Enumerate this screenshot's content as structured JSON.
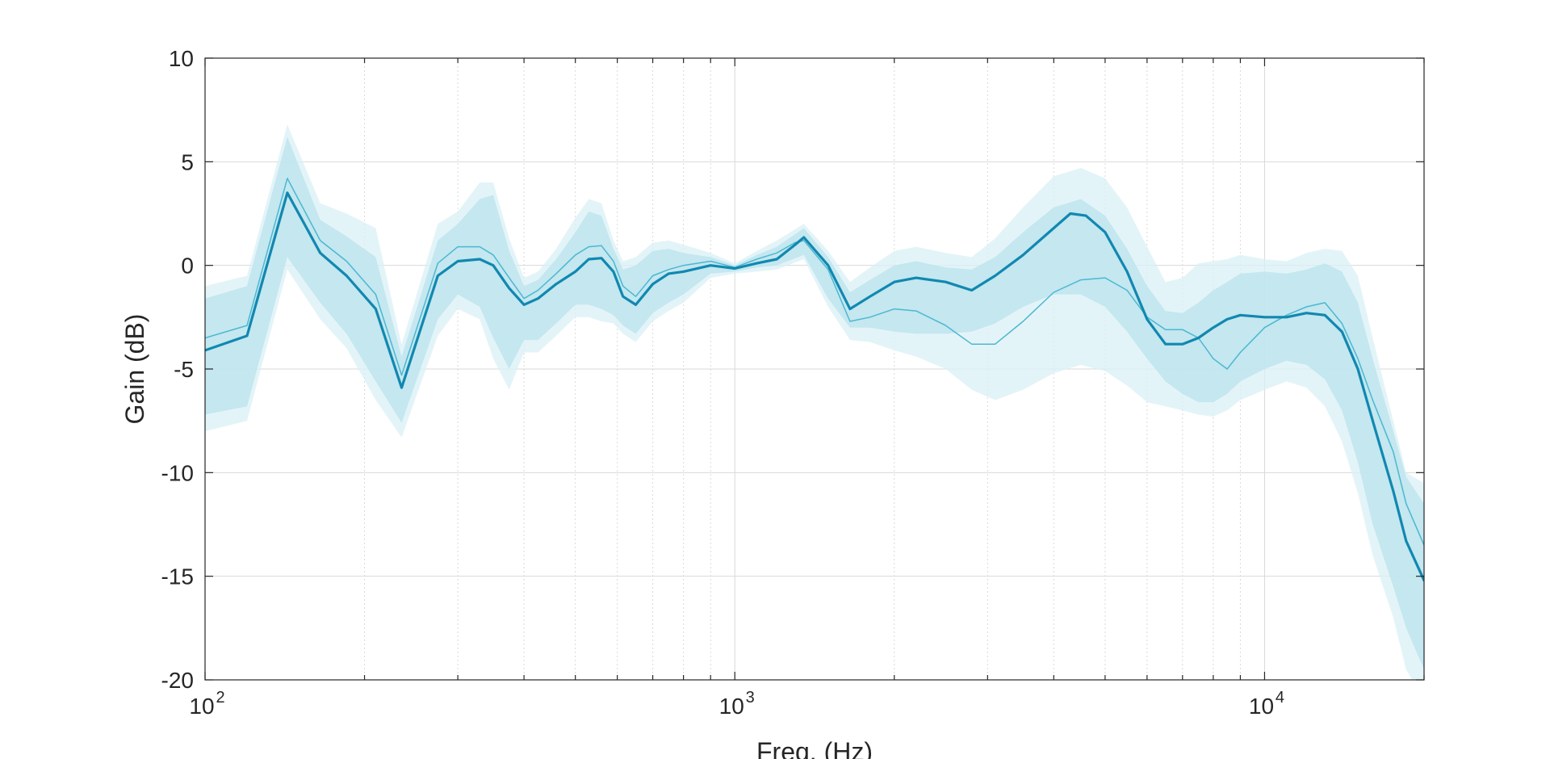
{
  "chart_data": {
    "type": "line",
    "title": "",
    "xlabel": "Freq. (Hz)",
    "ylabel": "Gain (dB)",
    "xscale": "log",
    "xlim": [
      100,
      20000
    ],
    "ylim": [
      -20,
      10
    ],
    "yticks": [
      10,
      5,
      0,
      -5,
      -10,
      -15,
      -20
    ],
    "xticks": [
      {
        "value": 100,
        "base": "10",
        "exp": "2"
      },
      {
        "value": 1000,
        "base": "10",
        "exp": "3"
      },
      {
        "value": 10000,
        "base": "10",
        "exp": "4"
      }
    ],
    "grid": true,
    "legend": "none",
    "colors": {
      "main_line": "#1188b0",
      "secondary_line": "#4bb8d0",
      "band_dark": "#b9e3ee",
      "band_light": "#d9f0f6",
      "grid": "#d9d9d9",
      "axis": "#262626"
    },
    "series": [
      {
        "role": "main",
        "x": [
          100,
          120,
          143,
          165,
          185,
          210,
          235,
          275,
          300,
          330,
          350,
          375,
          400,
          425,
          460,
          500,
          530,
          560,
          590,
          615,
          650,
          700,
          750,
          800,
          900,
          1000,
          1100,
          1200,
          1300,
          1350,
          1500,
          1650,
          1800,
          2000,
          2200,
          2500,
          2800,
          3100,
          3500,
          4000,
          4300,
          4600,
          5000,
          5500,
          6000,
          6500,
          7000,
          7500,
          8000,
          8500,
          9000,
          10000,
          11000,
          12000,
          13000,
          14000,
          15000,
          16000,
          17500,
          18500,
          20000
        ],
        "y": [
          -4.1,
          -3.4,
          3.5,
          0.6,
          -0.5,
          -2.1,
          -5.9,
          -0.5,
          0.2,
          0.3,
          0.0,
          -1.1,
          -1.9,
          -1.6,
          -0.9,
          -0.3,
          0.3,
          0.35,
          -0.3,
          -1.5,
          -1.9,
          -0.9,
          -0.4,
          -0.3,
          0.0,
          -0.15,
          0.1,
          0.3,
          1.0,
          1.35,
          0.0,
          -2.1,
          -1.5,
          -0.8,
          -0.6,
          -0.8,
          -1.2,
          -0.5,
          0.5,
          1.8,
          2.5,
          2.4,
          1.6,
          -0.3,
          -2.6,
          -3.8,
          -3.8,
          -3.5,
          -3.0,
          -2.6,
          -2.4,
          -2.5,
          -2.5,
          -2.3,
          -2.4,
          -3.2,
          -5.0,
          -7.5,
          -10.9,
          -13.3,
          -15.2
        ]
      },
      {
        "role": "secondary",
        "x": [
          100,
          120,
          143,
          165,
          185,
          210,
          235,
          275,
          300,
          330,
          350,
          375,
          400,
          425,
          460,
          500,
          530,
          560,
          590,
          615,
          650,
          700,
          750,
          800,
          900,
          1000,
          1100,
          1200,
          1300,
          1350,
          1500,
          1650,
          1800,
          2000,
          2200,
          2500,
          2800,
          3100,
          3500,
          4000,
          4500,
          5000,
          5500,
          6000,
          6500,
          7000,
          7500,
          8000,
          8500,
          9000,
          10000,
          11000,
          12000,
          13000,
          14000,
          15000,
          16000,
          17500,
          18500,
          20000
        ],
        "y": [
          -3.5,
          -2.9,
          4.2,
          1.2,
          0.2,
          -1.4,
          -5.3,
          0.1,
          0.9,
          0.9,
          0.5,
          -0.6,
          -1.6,
          -1.2,
          -0.4,
          0.5,
          0.9,
          0.95,
          0.2,
          -1.0,
          -1.5,
          -0.5,
          -0.2,
          0.0,
          0.2,
          -0.1,
          0.3,
          0.6,
          1.1,
          1.2,
          -0.2,
          -2.7,
          -2.5,
          -2.1,
          -2.2,
          -2.9,
          -3.8,
          -3.8,
          -2.7,
          -1.3,
          -0.7,
          -0.6,
          -1.2,
          -2.5,
          -3.1,
          -3.1,
          -3.5,
          -4.5,
          -5.0,
          -4.2,
          -3.0,
          -2.4,
          -2.0,
          -1.8,
          -2.8,
          -4.5,
          -6.5,
          -9.0,
          -11.5,
          -13.5
        ]
      }
    ],
    "bands": [
      {
        "role": "outer",
        "x": [
          100,
          120,
          143,
          165,
          185,
          210,
          235,
          275,
          300,
          330,
          350,
          375,
          400,
          425,
          460,
          500,
          530,
          560,
          590,
          615,
          650,
          700,
          750,
          800,
          900,
          1000,
          1100,
          1200,
          1350,
          1500,
          1650,
          1800,
          2000,
          2200,
          2500,
          2800,
          3100,
          3500,
          4000,
          4500,
          5000,
          5500,
          6000,
          6500,
          7000,
          7500,
          8000,
          8500,
          9000,
          10000,
          11000,
          12000,
          13000,
          14000,
          15000,
          16000,
          17500,
          18500,
          20000
        ],
        "upper": [
          -1.0,
          -0.5,
          6.8,
          3.0,
          2.5,
          1.8,
          -3.8,
          2.0,
          2.6,
          4.0,
          4.0,
          1.3,
          -0.6,
          -0.3,
          0.8,
          2.3,
          3.2,
          3.0,
          1.2,
          0.2,
          0.4,
          1.1,
          1.2,
          1.0,
          0.6,
          0.1,
          0.7,
          1.2,
          2.0,
          0.7,
          -0.8,
          -0.1,
          0.7,
          0.9,
          0.6,
          0.4,
          1.3,
          2.8,
          4.3,
          4.7,
          4.2,
          2.8,
          0.9,
          -0.8,
          -0.6,
          0.1,
          0.2,
          0.3,
          0.5,
          0.3,
          0.2,
          0.6,
          0.8,
          0.7,
          -0.5,
          -3.5,
          -7.5,
          -10.0,
          -10.5
        ],
        "lower": [
          -8.0,
          -7.5,
          -0.2,
          -2.6,
          -4.0,
          -6.5,
          -8.3,
          -3.4,
          -2.1,
          -2.6,
          -4.5,
          -6.0,
          -4.2,
          -4.2,
          -3.4,
          -2.5,
          -2.5,
          -2.7,
          -2.8,
          -3.3,
          -3.7,
          -2.7,
          -2.2,
          -1.8,
          -0.6,
          -0.4,
          -0.3,
          -0.2,
          0.3,
          -2.0,
          -3.6,
          -3.7,
          -4.1,
          -4.4,
          -5.0,
          -6.0,
          -6.5,
          -6.0,
          -5.2,
          -4.8,
          -5.1,
          -5.8,
          -6.6,
          -6.8,
          -7.0,
          -7.2,
          -7.3,
          -7.0,
          -6.5,
          -6.0,
          -5.6,
          -5.9,
          -6.8,
          -8.5,
          -11.0,
          -14.0,
          -17.0,
          -19.5,
          -21.0
        ]
      },
      {
        "role": "inner",
        "x": [
          100,
          120,
          143,
          165,
          185,
          210,
          235,
          275,
          300,
          330,
          350,
          375,
          400,
          425,
          460,
          500,
          530,
          560,
          590,
          615,
          650,
          700,
          750,
          800,
          900,
          1000,
          1100,
          1200,
          1350,
          1500,
          1650,
          1800,
          2000,
          2200,
          2500,
          2800,
          3100,
          3500,
          4000,
          4500,
          5000,
          5500,
          6000,
          6500,
          7000,
          7500,
          8000,
          8500,
          9000,
          10000,
          11000,
          12000,
          13000,
          14000,
          15000,
          16000,
          17500,
          18500,
          20000
        ],
        "upper": [
          -1.6,
          -1.0,
          6.2,
          2.2,
          1.4,
          0.4,
          -4.4,
          1.2,
          2.0,
          3.2,
          3.4,
          0.7,
          -1.0,
          -0.7,
          0.3,
          1.6,
          2.6,
          2.4,
          0.8,
          -0.2,
          0.0,
          0.7,
          0.8,
          0.6,
          0.4,
          0.0,
          0.5,
          0.9,
          1.8,
          0.4,
          -1.3,
          -0.7,
          0.0,
          0.2,
          -0.1,
          -0.2,
          0.4,
          1.6,
          2.8,
          3.2,
          2.4,
          0.8,
          -1.0,
          -2.2,
          -2.3,
          -1.8,
          -1.2,
          -0.8,
          -0.4,
          -0.3,
          -0.4,
          -0.2,
          0.1,
          -0.3,
          -1.8,
          -4.5,
          -8.0,
          -10.2,
          -11.5
        ],
        "lower": [
          -7.2,
          -6.8,
          0.4,
          -1.8,
          -3.3,
          -5.6,
          -7.6,
          -2.6,
          -1.4,
          -2.0,
          -3.5,
          -5.0,
          -3.6,
          -3.6,
          -2.8,
          -1.9,
          -1.9,
          -2.1,
          -2.4,
          -2.9,
          -3.3,
          -2.3,
          -1.8,
          -1.4,
          -0.4,
          -0.3,
          -0.1,
          0.0,
          0.5,
          -1.6,
          -3.0,
          -3.0,
          -3.2,
          -3.3,
          -3.3,
          -3.2,
          -2.8,
          -2.0,
          -1.4,
          -1.4,
          -2.0,
          -3.2,
          -4.5,
          -5.6,
          -6.2,
          -6.6,
          -6.6,
          -6.2,
          -5.6,
          -5.0,
          -4.6,
          -4.8,
          -5.5,
          -7.0,
          -9.5,
          -12.5,
          -15.5,
          -17.5,
          -19.5
        ]
      }
    ]
  }
}
